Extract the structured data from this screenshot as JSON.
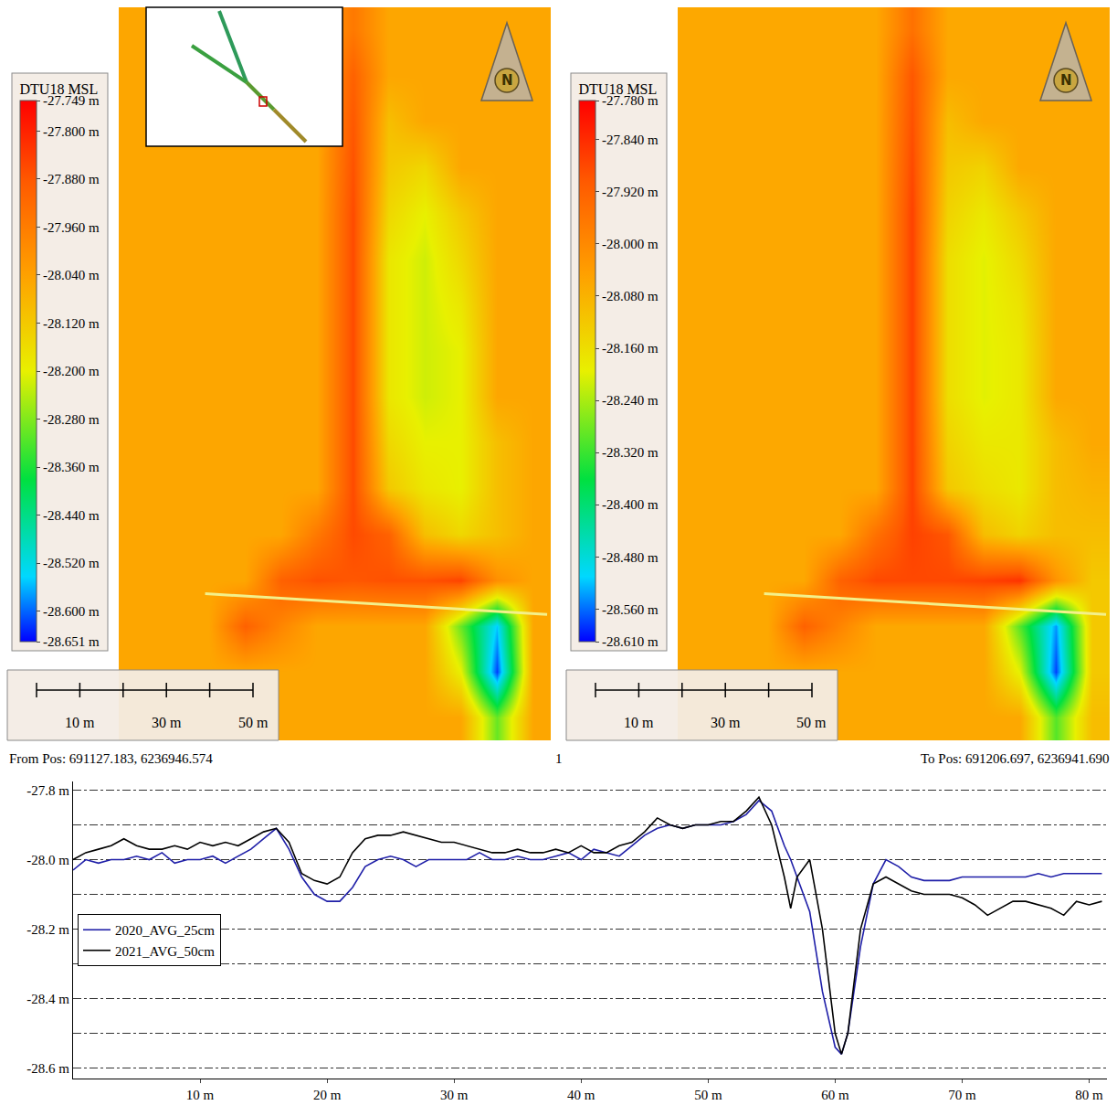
{
  "chart_data": [
    {
      "type": "heatmap",
      "colorbar": {
        "title": "DTU18 MSL",
        "range": [
          -28.651,
          -27.749
        ],
        "ticks": [
          {
            "value": -27.749,
            "label": "-27.749 m"
          },
          {
            "value": -27.8,
            "label": "-27.800 m"
          },
          {
            "value": -27.88,
            "label": "-27.880 m"
          },
          {
            "value": -27.96,
            "label": "-27.960 m"
          },
          {
            "value": -28.04,
            "label": "-28.040 m"
          },
          {
            "value": -28.12,
            "label": "-28.120 m"
          },
          {
            "value": -28.2,
            "label": "-28.200 m"
          },
          {
            "value": -28.28,
            "label": "-28.280 m"
          },
          {
            "value": -28.36,
            "label": "-28.360 m"
          },
          {
            "value": -28.44,
            "label": "-28.440 m"
          },
          {
            "value": -28.52,
            "label": "-28.520 m"
          },
          {
            "value": -28.6,
            "label": "-28.600 m"
          },
          {
            "value": -28.651,
            "label": "-28.651 m"
          }
        ]
      },
      "cells": [
        [
          -28.05,
          -28.05,
          -28.05,
          -28.05,
          -28.05,
          -28.05,
          -27.95,
          -28.05,
          -28.05,
          -28.05,
          -28.05,
          -28.05
        ],
        [
          -28.05,
          -28.05,
          -28.05,
          -28.05,
          -28.05,
          -28.05,
          -27.9,
          -28.05,
          -28.05,
          -28.05,
          -28.05,
          -28.05
        ],
        [
          -28.05,
          -28.05,
          -28.05,
          -28.05,
          -28.05,
          -28.05,
          -27.88,
          -28.1,
          -28.05,
          -28.05,
          -28.05,
          -28.05
        ],
        [
          -28.05,
          -28.05,
          -28.05,
          -28.05,
          -28.05,
          -28.05,
          -27.87,
          -28.12,
          -28.15,
          -28.05,
          -28.05,
          -28.05
        ],
        [
          -28.05,
          -28.05,
          -28.05,
          -28.05,
          -28.05,
          -28.05,
          -27.86,
          -28.15,
          -28.2,
          -28.12,
          -28.05,
          -28.05
        ],
        [
          -28.05,
          -28.05,
          -28.05,
          -28.05,
          -28.05,
          -28.05,
          -27.86,
          -28.18,
          -28.22,
          -28.15,
          -28.05,
          -28.05
        ],
        [
          -28.05,
          -28.05,
          -28.05,
          -28.05,
          -28.05,
          -28.05,
          -27.86,
          -28.18,
          -28.22,
          -28.18,
          -28.05,
          -28.05
        ],
        [
          -28.05,
          -28.05,
          -28.05,
          -28.05,
          -28.05,
          -28.05,
          -27.86,
          -28.18,
          -28.22,
          -28.2,
          -28.05,
          -28.05
        ],
        [
          -28.05,
          -28.05,
          -28.05,
          -28.05,
          -28.05,
          -28.05,
          -27.86,
          -28.18,
          -28.22,
          -28.2,
          -28.05,
          -28.05
        ],
        [
          -28.05,
          -28.05,
          -28.05,
          -28.05,
          -28.05,
          -28.05,
          -27.86,
          -28.15,
          -28.2,
          -28.2,
          -28.1,
          -28.05
        ],
        [
          -28.05,
          -28.05,
          -28.05,
          -28.05,
          -28.05,
          -28.05,
          -27.86,
          -28.12,
          -28.18,
          -28.2,
          -28.1,
          -28.05
        ],
        [
          -28.05,
          -28.05,
          -28.05,
          -28.05,
          -28.05,
          -27.95,
          -27.86,
          -27.9,
          -28.1,
          -28.15,
          -28.1,
          -28.05
        ],
        [
          -28.05,
          -28.05,
          -28.05,
          -28.05,
          -27.9,
          -27.87,
          -27.88,
          -27.87,
          -27.87,
          -27.85,
          -28.0,
          -28.05
        ],
        [
          -28.05,
          -28.05,
          -28.05,
          -27.9,
          -27.98,
          -28.05,
          -28.05,
          -28.05,
          -28.05,
          -28.3,
          -28.55,
          -28.05
        ],
        [
          -28.05,
          -28.05,
          -28.05,
          -28.05,
          -28.05,
          -28.05,
          -28.05,
          -28.05,
          -28.05,
          -28.2,
          -28.62,
          -28.05
        ],
        [
          -28.05,
          -28.05,
          -28.05,
          -28.05,
          -28.05,
          -28.05,
          -28.05,
          -28.05,
          -28.05,
          -28.05,
          -28.3,
          -28.05
        ]
      ],
      "scale_bar": {
        "ticks": [
          0,
          10,
          20,
          30,
          40,
          50
        ],
        "labels": [
          {
            "value": 10,
            "label": "10 m"
          },
          {
            "value": 30,
            "label": "30 m"
          },
          {
            "value": 50,
            "label": "50 m"
          }
        ]
      },
      "annotations": [
        "N"
      ]
    },
    {
      "type": "heatmap",
      "colorbar": {
        "title": "DTU18 MSL",
        "range": [
          -28.61,
          -27.78
        ],
        "ticks": [
          {
            "value": -27.78,
            "label": "-27.780 m"
          },
          {
            "value": -27.84,
            "label": "-27.840 m"
          },
          {
            "value": -27.92,
            "label": "-27.920 m"
          },
          {
            "value": -28.0,
            "label": "-28.000 m"
          },
          {
            "value": -28.08,
            "label": "-28.080 m"
          },
          {
            "value": -28.16,
            "label": "-28.160 m"
          },
          {
            "value": -28.24,
            "label": "-28.240 m"
          },
          {
            "value": -28.32,
            "label": "-28.320 m"
          },
          {
            "value": -28.4,
            "label": "-28.400 m"
          },
          {
            "value": -28.48,
            "label": "-28.480 m"
          },
          {
            "value": -28.56,
            "label": "-28.560 m"
          },
          {
            "value": -28.61,
            "label": "-28.610 m"
          }
        ]
      },
      "cells": [
        [
          -28.06,
          -28.06,
          -28.06,
          -28.06,
          -28.06,
          -28.06,
          -27.95,
          -28.06,
          -28.06,
          -28.06,
          -28.06,
          -28.06
        ],
        [
          -28.06,
          -28.06,
          -28.06,
          -28.06,
          -28.06,
          -28.06,
          -27.9,
          -28.06,
          -28.06,
          -28.06,
          -28.06,
          -28.06
        ],
        [
          -28.06,
          -28.06,
          -28.06,
          -28.06,
          -28.06,
          -28.06,
          -27.89,
          -28.1,
          -28.06,
          -28.06,
          -28.06,
          -28.06
        ],
        [
          -28.06,
          -28.06,
          -28.06,
          -28.06,
          -28.06,
          -28.06,
          -27.88,
          -28.12,
          -28.14,
          -28.06,
          -28.06,
          -28.06
        ],
        [
          -28.06,
          -28.06,
          -28.06,
          -28.06,
          -28.06,
          -28.06,
          -27.87,
          -28.14,
          -28.18,
          -28.12,
          -28.06,
          -28.06
        ],
        [
          -28.06,
          -28.06,
          -28.06,
          -28.06,
          -28.06,
          -28.06,
          -27.87,
          -28.16,
          -28.2,
          -28.15,
          -28.06,
          -28.06
        ],
        [
          -28.06,
          -28.06,
          -28.06,
          -28.06,
          -28.06,
          -28.06,
          -27.87,
          -28.16,
          -28.2,
          -28.17,
          -28.06,
          -28.06
        ],
        [
          -28.06,
          -28.06,
          -28.06,
          -28.06,
          -28.06,
          -28.06,
          -27.87,
          -28.16,
          -28.2,
          -28.18,
          -28.06,
          -28.06
        ],
        [
          -28.06,
          -28.06,
          -28.06,
          -28.06,
          -28.06,
          -28.06,
          -27.87,
          -28.16,
          -28.2,
          -28.18,
          -28.06,
          -28.06
        ],
        [
          -28.06,
          -28.06,
          -28.06,
          -28.06,
          -28.06,
          -28.06,
          -27.87,
          -28.14,
          -28.18,
          -28.18,
          -28.1,
          -28.06
        ],
        [
          -28.06,
          -28.06,
          -28.06,
          -28.06,
          -28.06,
          -28.06,
          -27.87,
          -28.12,
          -28.16,
          -28.18,
          -28.1,
          -28.08
        ],
        [
          -28.06,
          -28.06,
          -28.06,
          -28.06,
          -28.06,
          -27.95,
          -27.87,
          -27.9,
          -28.1,
          -28.14,
          -28.1,
          -28.1
        ],
        [
          -28.06,
          -28.06,
          -28.06,
          -28.06,
          -27.92,
          -27.88,
          -27.88,
          -27.88,
          -27.87,
          -27.85,
          -28.02,
          -28.12
        ],
        [
          -28.06,
          -28.06,
          -28.06,
          -27.92,
          -27.99,
          -28.06,
          -28.06,
          -28.06,
          -28.06,
          -28.3,
          -28.54,
          -28.12
        ],
        [
          -28.06,
          -28.06,
          -28.06,
          -28.06,
          -28.06,
          -28.06,
          -28.06,
          -28.06,
          -28.06,
          -28.2,
          -28.58,
          -28.12
        ],
        [
          -28.06,
          -28.06,
          -28.06,
          -28.06,
          -28.06,
          -28.06,
          -28.06,
          -28.06,
          -28.06,
          -28.06,
          -28.3,
          -28.1
        ]
      ],
      "scale_bar": {
        "ticks": [
          0,
          10,
          20,
          30,
          40,
          50
        ],
        "labels": [
          {
            "value": 10,
            "label": "10 m"
          },
          {
            "value": 30,
            "label": "30 m"
          },
          {
            "value": 50,
            "label": "50 m"
          }
        ]
      },
      "annotations": [
        "N"
      ]
    },
    {
      "type": "line",
      "annotations": [
        "From Pos: 691127.183, 6236946.574",
        "1",
        "To Pos: 691206.697, 6236941.690"
      ],
      "x": [
        0,
        1,
        2,
        3,
        4,
        5,
        6,
        7,
        8,
        9,
        10,
        11,
        12,
        13,
        14,
        15,
        16,
        17,
        18,
        19,
        20,
        21,
        22,
        23,
        24,
        25,
        26,
        27,
        28,
        29,
        30,
        31,
        32,
        33,
        34,
        35,
        36,
        37,
        38,
        39,
        40,
        41,
        42,
        43,
        44,
        45,
        46,
        47,
        48,
        49,
        50,
        51,
        52,
        53,
        54,
        55,
        56,
        56.5,
        57,
        58,
        59,
        60,
        60.5,
        61,
        62,
        63,
        64,
        65,
        66,
        67,
        68,
        69,
        70,
        71,
        72,
        73,
        74,
        75,
        76,
        77,
        78,
        79,
        80,
        81
      ],
      "series": [
        {
          "name": "2020_AVG_25cm",
          "color": "#1f1fa8",
          "values": [
            -28.03,
            -28.0,
            -28.01,
            -28.0,
            -28.0,
            -27.99,
            -28.0,
            -27.98,
            -28.01,
            -28.0,
            -28.0,
            -27.99,
            -28.01,
            -27.99,
            -27.97,
            -27.94,
            -27.91,
            -27.97,
            -28.05,
            -28.1,
            -28.12,
            -28.12,
            -28.08,
            -28.02,
            -28.0,
            -27.99,
            -28.0,
            -28.02,
            -28.0,
            -28.0,
            -28.0,
            -28.0,
            -27.98,
            -28.0,
            -28.0,
            -27.99,
            -28.0,
            -28.0,
            -27.99,
            -27.98,
            -28.0,
            -27.97,
            -27.98,
            -27.99,
            -27.96,
            -27.93,
            -27.91,
            -27.9,
            -27.91,
            -27.9,
            -27.9,
            -27.9,
            -27.89,
            -27.87,
            -27.83,
            -27.86,
            -27.96,
            -28.0,
            -28.05,
            -28.15,
            -28.38,
            -28.54,
            -28.56,
            -28.5,
            -28.25,
            -28.07,
            -28.0,
            -28.02,
            -28.05,
            -28.06,
            -28.06,
            -28.06,
            -28.05,
            -28.05,
            -28.05,
            -28.05,
            -28.05,
            -28.05,
            -28.04,
            -28.05,
            -28.04,
            -28.04,
            -28.04,
            -28.04
          ]
        },
        {
          "name": "2021_AVG_50cm",
          "color": "#000000",
          "values": [
            -28.0,
            -27.98,
            -27.97,
            -27.96,
            -27.94,
            -27.96,
            -27.97,
            -27.97,
            -27.96,
            -27.97,
            -27.95,
            -27.96,
            -27.95,
            -27.96,
            -27.94,
            -27.92,
            -27.91,
            -27.95,
            -28.04,
            -28.06,
            -28.07,
            -28.05,
            -27.98,
            -27.94,
            -27.93,
            -27.93,
            -27.92,
            -27.93,
            -27.94,
            -27.95,
            -27.95,
            -27.96,
            -27.97,
            -27.98,
            -27.98,
            -27.97,
            -27.98,
            -27.98,
            -27.97,
            -27.98,
            -27.96,
            -27.98,
            -27.98,
            -27.96,
            -27.95,
            -27.92,
            -27.88,
            -27.9,
            -27.91,
            -27.9,
            -27.9,
            -27.89,
            -27.89,
            -27.86,
            -27.82,
            -27.9,
            -28.05,
            -28.14,
            -28.05,
            -28.0,
            -28.2,
            -28.5,
            -28.56,
            -28.5,
            -28.2,
            -28.07,
            -28.05,
            -28.07,
            -28.09,
            -28.1,
            -28.1,
            -28.1,
            -28.11,
            -28.13,
            -28.16,
            -28.14,
            -28.12,
            -28.12,
            -28.13,
            -28.14,
            -28.16,
            -28.12,
            -28.13,
            -28.12
          ]
        }
      ],
      "xlim": [
        0,
        81.4
      ],
      "xticks": [
        {
          "value": 10,
          "label": "10 m"
        },
        {
          "value": 20,
          "label": "20 m"
        },
        {
          "value": 30,
          "label": "30 m"
        },
        {
          "value": 40,
          "label": "40 m"
        },
        {
          "value": 50,
          "label": "50 m"
        },
        {
          "value": 60,
          "label": "60 m"
        },
        {
          "value": 70,
          "label": "70 m"
        },
        {
          "value": 80,
          "label": "80 m"
        }
      ],
      "ylim": [
        -28.63,
        -27.775
      ],
      "yticks": [
        {
          "value": -27.8,
          "label": "-27.8 m"
        },
        {
          "value": -28.0,
          "label": "-28.0 m"
        },
        {
          "value": -28.2,
          "label": "-28.2 m"
        },
        {
          "value": -28.4,
          "label": "-28.4 m"
        },
        {
          "value": -28.6,
          "label": "-28.6 m"
        }
      ],
      "grid": true,
      "legend": "lower left"
    }
  ]
}
